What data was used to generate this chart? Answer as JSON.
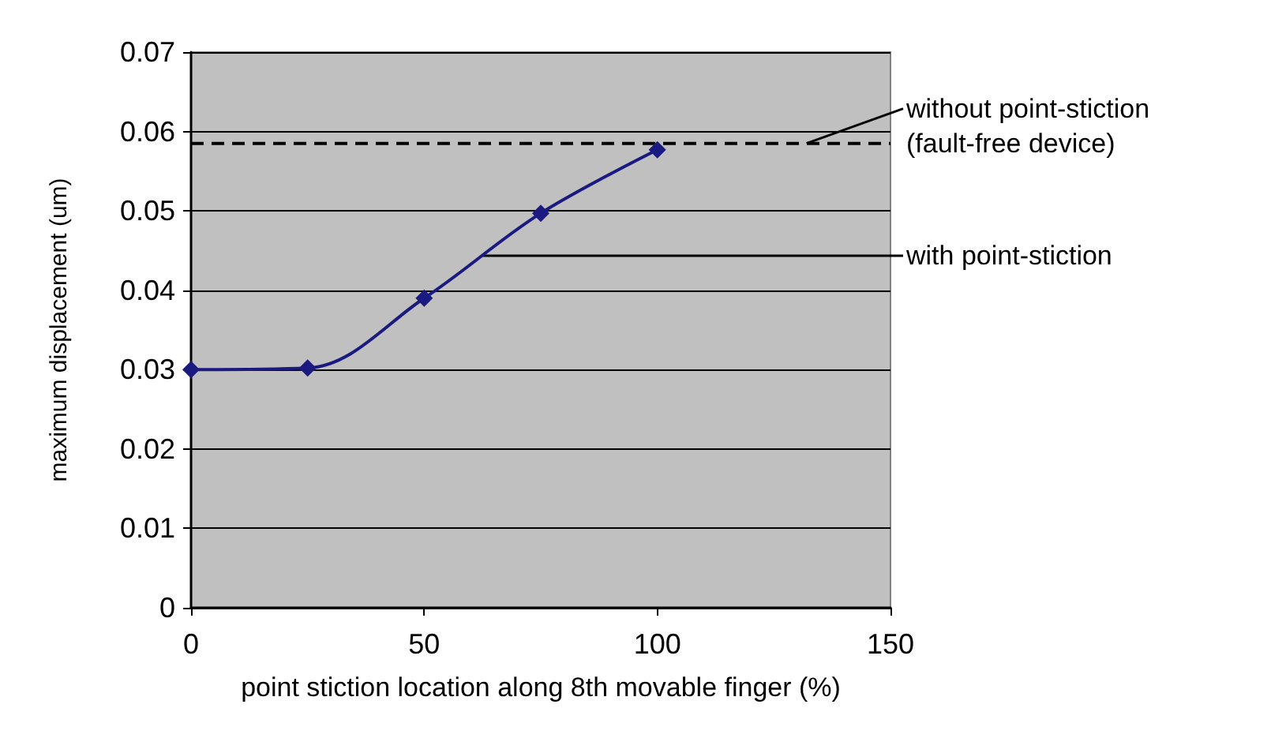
{
  "chart_data": {
    "type": "line",
    "xlabel": "point stiction location along 8th movable finger (%)",
    "ylabel": "maximum displacement (um)",
    "x": [
      0,
      25,
      50,
      75,
      100
    ],
    "series": [
      {
        "name": "with point-stiction",
        "color": "#1a1a80",
        "values": [
          0.03,
          0.0302,
          0.039,
          0.0497,
          0.0577
        ]
      }
    ],
    "xlim": [
      0,
      150
    ],
    "xticks": [
      0,
      50,
      100,
      150
    ],
    "ylim": [
      0,
      0.07
    ],
    "yticks": [
      0,
      0.01,
      0.02,
      0.03,
      0.04,
      0.05,
      0.06,
      0.07
    ],
    "grid": "y",
    "marker": "diamond",
    "line_style": "solid",
    "ref_lines": [
      {
        "axis": "y",
        "value": 0.0585,
        "label": "without point-stiction\n(fault-free device)",
        "color": "#000000",
        "line_style": "dashed"
      }
    ]
  }
}
